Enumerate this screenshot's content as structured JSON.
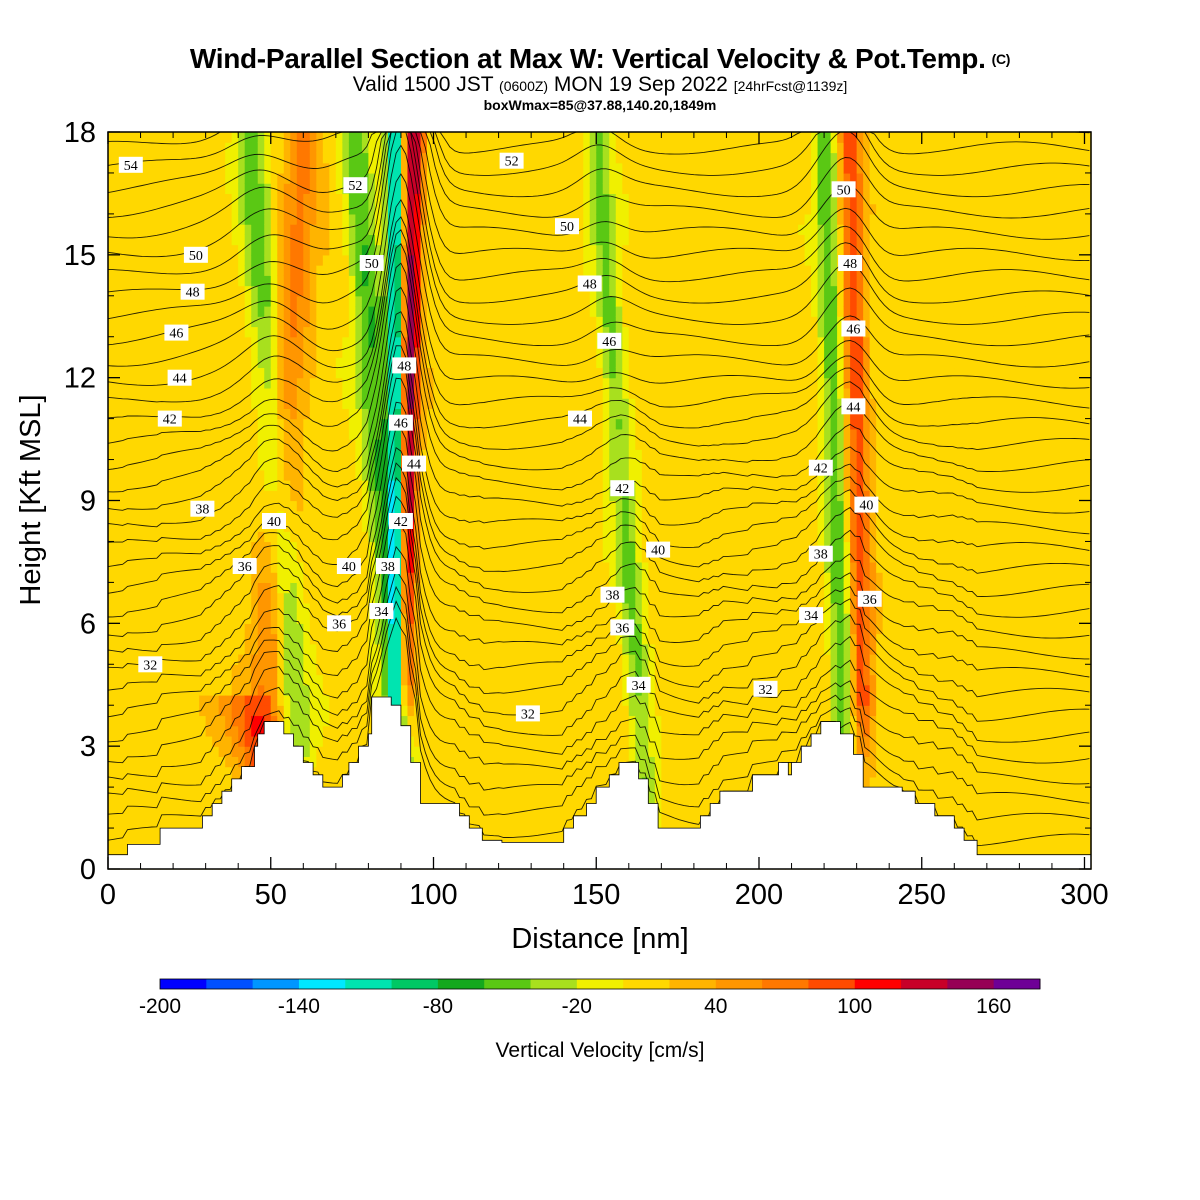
{
  "title": {
    "main": "Wind-Parallel Section at Max W: Vertical Velocity & Pot.Temp.",
    "copyright": "(C)",
    "valid_prefix": "Valid 1500 JST",
    "utc": "(0600Z)",
    "valid_date": "MON 19 Sep 2022",
    "forecast": "[24hrFcst@1139z]",
    "boxmax": "boxWmax=85@37.88,140.20,1849m"
  },
  "colorbar": {
    "label": "Vertical Velocity [cm/s]",
    "levels": [
      -200,
      -180,
      -160,
      -140,
      -120,
      -100,
      -80,
      -60,
      -40,
      -20,
      0,
      20,
      40,
      60,
      80,
      100,
      120,
      140,
      160,
      180
    ],
    "tick_labels": [
      "-200",
      "-140",
      "-80",
      "-20",
      "40",
      "100",
      "160"
    ],
    "colors": [
      "#0000ff",
      "#0050ff",
      "#0096ff",
      "#00e8ff",
      "#00e4b0",
      "#00c864",
      "#14a81e",
      "#5ac814",
      "#a8e01e",
      "#f0f000",
      "#ffd800",
      "#ffb400",
      "#ff9600",
      "#ff7800",
      "#ff4b00",
      "#ff0000",
      "#c80028",
      "#960055",
      "#6e0096"
    ]
  },
  "chart_data": {
    "type": "heatmap",
    "title": "Wind-Parallel Section at Max W: Vertical Velocity & Pot.Temp.",
    "xlabel": "Distance [nm]",
    "ylabel": "Height [Kft MSL]",
    "xlim": [
      0,
      302
    ],
    "ylim": [
      0,
      18
    ],
    "x_ticks": [
      "0",
      "50",
      "100",
      "150",
      "200",
      "250",
      "300"
    ],
    "y_ticks": [
      "0",
      "3",
      "6",
      "9",
      "12",
      "15",
      "18"
    ],
    "background_value_cm_s": 10,
    "vertical_velocity_bands": [
      {
        "name": "updraft-1",
        "bottom": [
          48,
          3.5
        ],
        "top": [
          60,
          18
        ],
        "width": 6,
        "peak": 55
      },
      {
        "name": "downdraft-1",
        "bottom": [
          58,
          3.0
        ],
        "top": [
          44,
          18
        ],
        "width": 5,
        "peak": -60
      },
      {
        "name": "downdraft-2",
        "bottom": [
          90,
          3.0
        ],
        "top": [
          76,
          18
        ],
        "width": 5,
        "peak": -70
      },
      {
        "name": "updraft-core",
        "bottom": [
          91,
          4.5
        ],
        "top": [
          94,
          18
        ],
        "width": 3,
        "peak": 140
      },
      {
        "name": "downdraft-core",
        "bottom": [
          89,
          4.2
        ],
        "top": [
          88,
          18
        ],
        "width": 2.5,
        "peak": -140
      },
      {
        "name": "downdraft-3",
        "bottom": [
          165,
          2.0
        ],
        "top": [
          150,
          18
        ],
        "width": 4,
        "peak": -55
      },
      {
        "name": "updraft-2",
        "bottom": [
          232,
          4.0
        ],
        "top": [
          228,
          18
        ],
        "width": 3.5,
        "peak": 85
      },
      {
        "name": "downdraft-4",
        "bottom": [
          226,
          3.5
        ],
        "top": [
          220,
          18
        ],
        "width": 3.5,
        "peak": -65
      },
      {
        "name": "updraft-3",
        "bottom": [
          60,
          0.5
        ],
        "top": [
          40,
          4.0
        ],
        "width": 10,
        "peak": 45
      }
    ],
    "theta_contour_label_levels": [
      32,
      34,
      36,
      38,
      40,
      42,
      44,
      46,
      48,
      50,
      52,
      54
    ],
    "theta_contour_labels": [
      {
        "text": "54",
        "x": 7,
        "y": 17.2
      },
      {
        "text": "52",
        "x": 76,
        "y": 16.7
      },
      {
        "text": "52",
        "x": 124,
        "y": 17.3
      },
      {
        "text": "50",
        "x": 27,
        "y": 15.0
      },
      {
        "text": "50",
        "x": 81,
        "y": 14.8
      },
      {
        "text": "50",
        "x": 141,
        "y": 15.7
      },
      {
        "text": "50",
        "x": 226,
        "y": 16.6
      },
      {
        "text": "48",
        "x": 26,
        "y": 14.1
      },
      {
        "text": "48",
        "x": 91,
        "y": 12.3
      },
      {
        "text": "48",
        "x": 148,
        "y": 14.3
      },
      {
        "text": "48",
        "x": 228,
        "y": 14.8
      },
      {
        "text": "46",
        "x": 21,
        "y": 13.1
      },
      {
        "text": "46",
        "x": 90,
        "y": 10.9
      },
      {
        "text": "46",
        "x": 154,
        "y": 12.9
      },
      {
        "text": "46",
        "x": 229,
        "y": 13.2
      },
      {
        "text": "44",
        "x": 22,
        "y": 12.0
      },
      {
        "text": "44",
        "x": 94,
        "y": 9.9
      },
      {
        "text": "44",
        "x": 145,
        "y": 11.0
      },
      {
        "text": "44",
        "x": 229,
        "y": 11.3
      },
      {
        "text": "42",
        "x": 19,
        "y": 11.0
      },
      {
        "text": "42",
        "x": 90,
        "y": 8.5
      },
      {
        "text": "42",
        "x": 158,
        "y": 9.3
      },
      {
        "text": "42",
        "x": 219,
        "y": 9.8
      },
      {
        "text": "40",
        "x": 51,
        "y": 8.5
      },
      {
        "text": "40",
        "x": 74,
        "y": 7.4
      },
      {
        "text": "40",
        "x": 169,
        "y": 7.8
      },
      {
        "text": "40",
        "x": 233,
        "y": 8.9
      },
      {
        "text": "38",
        "x": 29,
        "y": 8.8
      },
      {
        "text": "38",
        "x": 86,
        "y": 7.4
      },
      {
        "text": "38",
        "x": 155,
        "y": 6.7
      },
      {
        "text": "38",
        "x": 219,
        "y": 7.7
      },
      {
        "text": "36",
        "x": 42,
        "y": 7.4
      },
      {
        "text": "36",
        "x": 71,
        "y": 6.0
      },
      {
        "text": "36",
        "x": 158,
        "y": 5.9
      },
      {
        "text": "36",
        "x": 234,
        "y": 6.6
      },
      {
        "text": "34",
        "x": 84,
        "y": 6.3
      },
      {
        "text": "34",
        "x": 163,
        "y": 4.5
      },
      {
        "text": "34",
        "x": 216,
        "y": 6.2
      },
      {
        "text": "32",
        "x": 13,
        "y": 5.0
      },
      {
        "text": "32",
        "x": 129,
        "y": 3.8
      },
      {
        "text": "32",
        "x": 202,
        "y": 4.4
      }
    ],
    "terrain_profile": [
      [
        0,
        0.35
      ],
      [
        6,
        0.35
      ],
      [
        6,
        0.6
      ],
      [
        16,
        0.6
      ],
      [
        16,
        1.0
      ],
      [
        29,
        1.0
      ],
      [
        29,
        1.3
      ],
      [
        32,
        1.3
      ],
      [
        32,
        1.6
      ],
      [
        35,
        1.6
      ],
      [
        35,
        1.9
      ],
      [
        38,
        1.9
      ],
      [
        38,
        2.2
      ],
      [
        41,
        2.2
      ],
      [
        41,
        2.5
      ],
      [
        45,
        2.5
      ],
      [
        45,
        3.0
      ],
      [
        46,
        3.0
      ],
      [
        46,
        3.3
      ],
      [
        48,
        3.3
      ],
      [
        48,
        3.6
      ],
      [
        54,
        3.6
      ],
      [
        54,
        3.3
      ],
      [
        57,
        3.3
      ],
      [
        57,
        3.0
      ],
      [
        60,
        3.0
      ],
      [
        60,
        2.6
      ],
      [
        63,
        2.6
      ],
      [
        63,
        2.3
      ],
      [
        66,
        2.3
      ],
      [
        66,
        2.0
      ],
      [
        72,
        2.0
      ],
      [
        72,
        2.3
      ],
      [
        74,
        2.3
      ],
      [
        74,
        2.6
      ],
      [
        77,
        2.6
      ],
      [
        77,
        3.0
      ],
      [
        80,
        3.0
      ],
      [
        80,
        3.3
      ],
      [
        81,
        3.3
      ],
      [
        81,
        4.2
      ],
      [
        87,
        4.2
      ],
      [
        87,
        4.0
      ],
      [
        90,
        4.0
      ],
      [
        90,
        3.5
      ],
      [
        93,
        3.5
      ],
      [
        93,
        2.6
      ],
      [
        96,
        2.6
      ],
      [
        96,
        1.6
      ],
      [
        108,
        1.6
      ],
      [
        108,
        1.3
      ],
      [
        111,
        1.3
      ],
      [
        111,
        1.0
      ],
      [
        115,
        1.0
      ],
      [
        115,
        0.7
      ],
      [
        121,
        0.7
      ],
      [
        121,
        0.65
      ],
      [
        140,
        0.65
      ],
      [
        140,
        1.0
      ],
      [
        143,
        1.0
      ],
      [
        143,
        1.3
      ],
      [
        147,
        1.3
      ],
      [
        147,
        1.6
      ],
      [
        150,
        1.6
      ],
      [
        150,
        2.0
      ],
      [
        154,
        2.0
      ],
      [
        154,
        2.3
      ],
      [
        157,
        2.3
      ],
      [
        157,
        2.6
      ],
      [
        163,
        2.6
      ],
      [
        163,
        2.2
      ],
      [
        166,
        2.2
      ],
      [
        166,
        1.6
      ],
      [
        169,
        1.6
      ],
      [
        169,
        1.0
      ],
      [
        182,
        1.0
      ],
      [
        182,
        1.3
      ],
      [
        185,
        1.3
      ],
      [
        185,
        1.6
      ],
      [
        188,
        1.6
      ],
      [
        188,
        1.9
      ],
      [
        198,
        1.9
      ],
      [
        198,
        2.3
      ],
      [
        206,
        2.3
      ],
      [
        206,
        2.6
      ],
      [
        209,
        2.6
      ],
      [
        209,
        2.3
      ],
      [
        210,
        2.3
      ],
      [
        210,
        2.6
      ],
      [
        213,
        2.6
      ],
      [
        213,
        3.0
      ],
      [
        216,
        3.0
      ],
      [
        216,
        3.3
      ],
      [
        219,
        3.3
      ],
      [
        219,
        3.6
      ],
      [
        225,
        3.6
      ],
      [
        225,
        3.3
      ],
      [
        229,
        3.3
      ],
      [
        229,
        2.8
      ],
      [
        232,
        2.8
      ],
      [
        232,
        2.0
      ],
      [
        244,
        2.0
      ],
      [
        244,
        1.9
      ],
      [
        248,
        1.9
      ],
      [
        248,
        1.6
      ],
      [
        254,
        1.6
      ],
      [
        254,
        1.3
      ],
      [
        260,
        1.3
      ],
      [
        260,
        1.0
      ],
      [
        263,
        1.0
      ],
      [
        263,
        0.7
      ],
      [
        267,
        0.7
      ],
      [
        267,
        0.35
      ],
      [
        302,
        0.35
      ]
    ]
  }
}
